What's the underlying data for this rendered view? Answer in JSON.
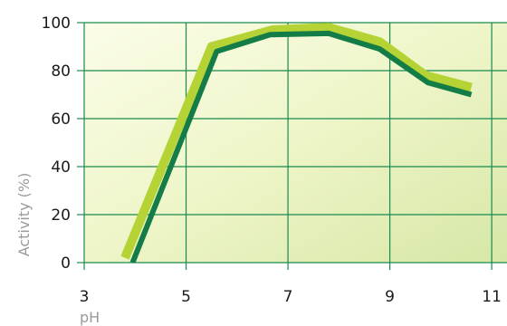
{
  "chart_data": {
    "type": "line",
    "title": "",
    "xlabel": "pH",
    "ylabel": "Activity (%)",
    "xlim": [
      3,
      11.3
    ],
    "ylim": [
      0,
      100
    ],
    "x_ticks": [
      "3",
      "5",
      "7",
      "9",
      "11"
    ],
    "y_ticks": [
      "0",
      "20",
      "40",
      "60",
      "80",
      "100"
    ],
    "grid": true,
    "legend": "none",
    "series": [
      {
        "color": "#b5d334",
        "x": [
          3.8,
          5.5,
          6.7,
          7.8,
          8.8,
          9.7,
          10.6
        ],
        "y": [
          2,
          90,
          97,
          98,
          92,
          78,
          73
        ]
      },
      {
        "color": "#137c47",
        "x": [
          3.95,
          5.6,
          6.65,
          7.8,
          8.8,
          9.75,
          10.6
        ],
        "y": [
          0,
          88,
          95,
          95.5,
          89,
          75,
          70
        ]
      }
    ],
    "colors": {
      "grid": "#1a8a4e",
      "background_light": "#fbfde8",
      "background_dark": "#d6e7a6"
    }
  }
}
